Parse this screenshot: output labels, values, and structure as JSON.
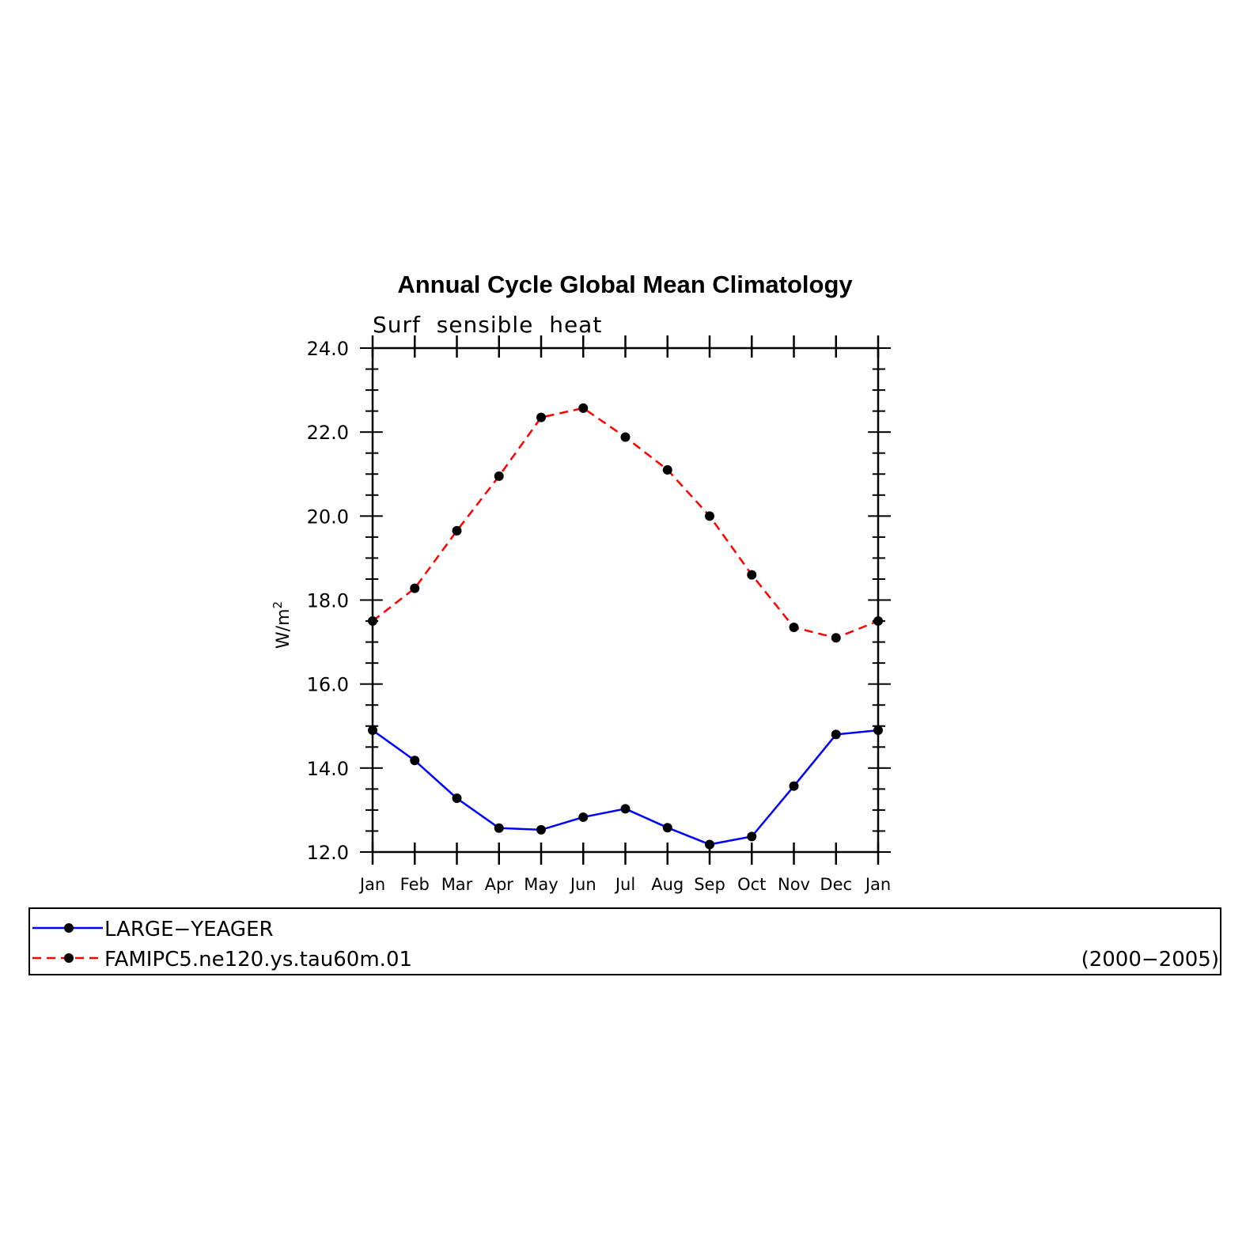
{
  "chart_data": {
    "type": "line",
    "title": "Annual Cycle Global Mean Climatology",
    "subtitle": "Surf  sensible  heat",
    "ylabel": "W/m",
    "ylabel_sup": "2",
    "xlabel": "",
    "categories": [
      "Jan",
      "Feb",
      "Mar",
      "Apr",
      "May",
      "Jun",
      "Jul",
      "Aug",
      "Sep",
      "Oct",
      "Nov",
      "Dec",
      "Jan"
    ],
    "ylim": [
      12.0,
      24.0
    ],
    "yticks": [
      "12.0",
      "14.0",
      "16.0",
      "18.0",
      "20.0",
      "22.0",
      "24.0"
    ],
    "grid": false,
    "legend_placement": "bottom",
    "series": [
      {
        "name": "LARGE−YEAGER",
        "color": "#0000ff",
        "dash": "solid",
        "marker": "dot",
        "values": [
          14.9,
          14.18,
          13.28,
          12.57,
          12.53,
          12.83,
          13.03,
          12.58,
          12.18,
          12.37,
          13.57,
          14.8,
          14.9
        ]
      },
      {
        "name": "FAMIPC5.ne120.ys.tau60m.01",
        "color": "#ff0000",
        "dash": "dashed",
        "marker": "dot",
        "values": [
          17.5,
          18.28,
          19.65,
          20.95,
          22.35,
          22.57,
          21.88,
          21.1,
          20.0,
          18.6,
          17.35,
          17.1,
          17.5
        ]
      }
    ],
    "legend_note": "(2000−2005)"
  }
}
